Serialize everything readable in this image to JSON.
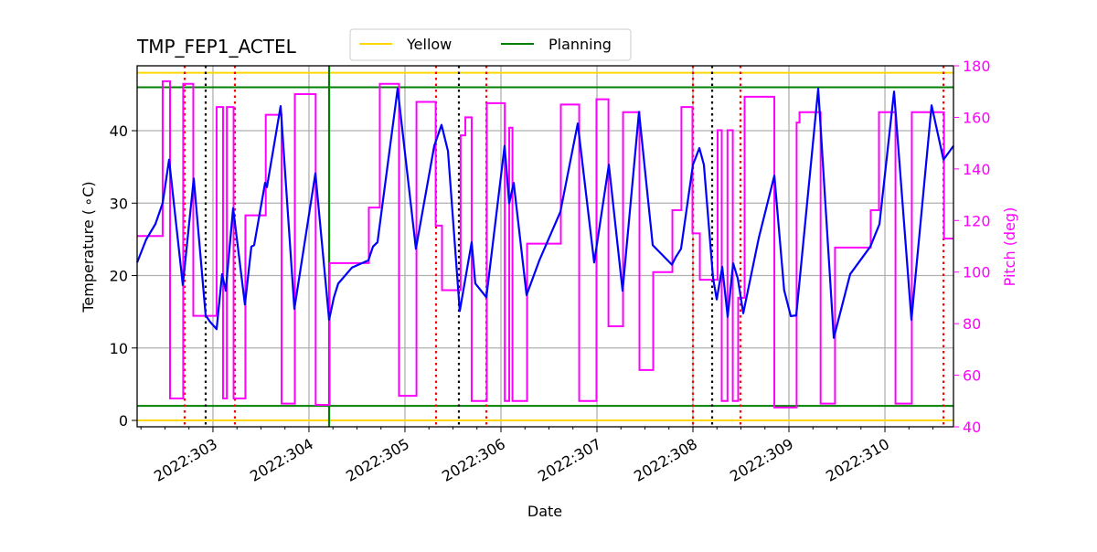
{
  "chart_data": {
    "type": "line",
    "title": "TMP_FEP1_ACTEL",
    "xlabel": "Date",
    "ylabel": "Temperature ($^\\circ$C)",
    "ylabel_display": "Temperature ( ∘C)",
    "y2label": "Pitch (deg)",
    "xlim": [
      302.21,
      310.714
    ],
    "ylim": [
      -0.88,
      48.96
    ],
    "y2lim": [
      40,
      180
    ],
    "grid": true,
    "legend_placement": "top-center",
    "xticks": [
      {
        "value": 303,
        "label": "2022:303"
      },
      {
        "value": 304,
        "label": "2022:304"
      },
      {
        "value": 305,
        "label": "2022:305"
      },
      {
        "value": 306,
        "label": "2022:306"
      },
      {
        "value": 307,
        "label": "2022:307"
      },
      {
        "value": 308,
        "label": "2022:308"
      },
      {
        "value": 309,
        "label": "2022:309"
      },
      {
        "value": 310,
        "label": "2022:310"
      }
    ],
    "yticks": [
      0,
      10,
      20,
      30,
      40
    ],
    "y2ticks": [
      40,
      60,
      80,
      100,
      120,
      140,
      160,
      180
    ],
    "colors": {
      "temperature": "#0000ff",
      "pitch": "#ff00ff",
      "yellow": "#ffd700",
      "planning": "#008000",
      "red_marker": "#ff0000",
      "black_marker": "#000000",
      "grid": "#b0b0b0",
      "y2axis": "#ff00ff"
    },
    "legend": [
      {
        "label": "Yellow",
        "color": "#ffd700"
      },
      {
        "label": "Planning",
        "color": "#008000"
      }
    ],
    "hlines": [
      {
        "series": "Yellow",
        "value": 48,
        "color": "#ffd700"
      },
      {
        "series": "Yellow",
        "value": 0,
        "color": "#ffd700"
      },
      {
        "series": "Planning",
        "value": 46,
        "color": "#008000"
      },
      {
        "series": "Planning",
        "value": 2,
        "color": "#008000"
      }
    ],
    "vlines": [
      {
        "x": 302.705,
        "color": "#ff0000",
        "style": "dotted"
      },
      {
        "x": 303.229,
        "color": "#ff0000",
        "style": "dotted"
      },
      {
        "x": 305.324,
        "color": "#ff0000",
        "style": "dotted"
      },
      {
        "x": 305.848,
        "color": "#ff0000",
        "style": "dotted"
      },
      {
        "x": 308.0,
        "color": "#ff0000",
        "style": "dotted"
      },
      {
        "x": 308.495,
        "color": "#ff0000",
        "style": "dotted"
      },
      {
        "x": 310.61,
        "color": "#ff0000",
        "style": "dotted"
      },
      {
        "x": 302.924,
        "color": "#000000",
        "style": "dotted"
      },
      {
        "x": 305.562,
        "color": "#000000",
        "style": "dotted"
      },
      {
        "x": 308.2,
        "color": "#000000",
        "style": "dotted"
      },
      {
        "x": 304.21,
        "color": "#008000",
        "style": "solid"
      }
    ],
    "temperature": [
      [
        302.21,
        21.8
      ],
      [
        302.305,
        25.0
      ],
      [
        302.4,
        27.1
      ],
      [
        302.476,
        30.0
      ],
      [
        302.543,
        36.0
      ],
      [
        302.686,
        18.7
      ],
      [
        302.8,
        33.4
      ],
      [
        302.924,
        14.5
      ],
      [
        302.971,
        13.6
      ],
      [
        303.038,
        12.6
      ],
      [
        303.095,
        20.2
      ],
      [
        303.133,
        17.9
      ],
      [
        303.21,
        29.3
      ],
      [
        303.333,
        16.0
      ],
      [
        303.4,
        24.0
      ],
      [
        303.429,
        24.2
      ],
      [
        303.543,
        32.8
      ],
      [
        303.562,
        32.2
      ],
      [
        303.705,
        43.4
      ],
      [
        303.848,
        15.4
      ],
      [
        304.067,
        34.1
      ],
      [
        304.21,
        13.9
      ],
      [
        304.26,
        17.0
      ],
      [
        304.305,
        18.9
      ],
      [
        304.448,
        21.1
      ],
      [
        304.619,
        22.1
      ],
      [
        304.667,
        24.0
      ],
      [
        304.714,
        24.6
      ],
      [
        304.924,
        45.8
      ],
      [
        305.114,
        23.7
      ],
      [
        305.305,
        37.9
      ],
      [
        305.381,
        40.8
      ],
      [
        305.448,
        37.2
      ],
      [
        305.571,
        15.1
      ],
      [
        305.695,
        24.6
      ],
      [
        305.733,
        18.9
      ],
      [
        305.848,
        17.0
      ],
      [
        306.038,
        37.9
      ],
      [
        306.086,
        30.0
      ],
      [
        306.133,
        32.8
      ],
      [
        306.267,
        17.3
      ],
      [
        306.4,
        22.1
      ],
      [
        306.619,
        28.8
      ],
      [
        306.8,
        41.0
      ],
      [
        306.971,
        21.8
      ],
      [
        307.124,
        35.3
      ],
      [
        307.267,
        17.9
      ],
      [
        307.438,
        42.6
      ],
      [
        307.581,
        24.2
      ],
      [
        307.781,
        21.5
      ],
      [
        307.819,
        22.5
      ],
      [
        307.876,
        23.7
      ],
      [
        308.0,
        35.3
      ],
      [
        308.067,
        37.6
      ],
      [
        308.114,
        35.3
      ],
      [
        308.21,
        19.6
      ],
      [
        308.248,
        16.7
      ],
      [
        308.305,
        21.2
      ],
      [
        308.362,
        14.3
      ],
      [
        308.419,
        21.7
      ],
      [
        308.467,
        19.6
      ],
      [
        308.524,
        14.8
      ],
      [
        308.686,
        25.2
      ],
      [
        308.848,
        33.8
      ],
      [
        308.95,
        18.0
      ],
      [
        309.019,
        14.4
      ],
      [
        309.076,
        14.5
      ],
      [
        309.305,
        45.8
      ],
      [
        309.467,
        11.4
      ],
      [
        309.638,
        20.2
      ],
      [
        309.848,
        24.0
      ],
      [
        309.943,
        27.1
      ],
      [
        310.095,
        45.4
      ],
      [
        310.276,
        13.9
      ],
      [
        310.486,
        43.5
      ],
      [
        310.61,
        36.0
      ],
      [
        310.714,
        37.9
      ]
    ],
    "pitch_steps": [
      [
        302.21,
        114
      ],
      [
        302.476,
        174
      ],
      [
        302.553,
        51
      ],
      [
        302.69,
        173
      ],
      [
        302.795,
        83
      ],
      [
        303.038,
        164
      ],
      [
        303.105,
        51
      ],
      [
        303.145,
        164
      ],
      [
        303.215,
        51
      ],
      [
        303.338,
        122
      ],
      [
        303.55,
        161
      ],
      [
        303.715,
        49
      ],
      [
        303.853,
        169
      ],
      [
        304.07,
        48.5
      ],
      [
        304.215,
        103.5
      ],
      [
        304.624,
        125
      ],
      [
        304.738,
        173
      ],
      [
        304.938,
        52
      ],
      [
        305.12,
        166
      ],
      [
        305.32,
        118
      ],
      [
        305.386,
        93
      ],
      [
        305.58,
        153
      ],
      [
        305.629,
        160
      ],
      [
        305.695,
        50
      ],
      [
        305.852,
        165.5
      ],
      [
        306.04,
        50
      ],
      [
        306.086,
        156
      ],
      [
        306.12,
        50
      ],
      [
        306.272,
        111
      ],
      [
        306.624,
        165
      ],
      [
        306.815,
        50
      ],
      [
        306.995,
        167
      ],
      [
        307.12,
        79
      ],
      [
        307.272,
        162
      ],
      [
        307.443,
        62
      ],
      [
        307.586,
        100
      ],
      [
        307.786,
        124
      ],
      [
        307.88,
        164
      ],
      [
        307.995,
        115
      ],
      [
        308.072,
        97
      ],
      [
        308.257,
        155
      ],
      [
        308.3,
        50
      ],
      [
        308.36,
        155
      ],
      [
        308.415,
        50
      ],
      [
        308.471,
        90
      ],
      [
        308.538,
        168
      ],
      [
        308.848,
        47.5
      ],
      [
        309.08,
        158
      ],
      [
        309.11,
        162
      ],
      [
        309.33,
        49
      ],
      [
        309.48,
        109.5
      ],
      [
        309.852,
        124
      ],
      [
        309.938,
        162
      ],
      [
        310.11,
        49
      ],
      [
        310.28,
        162
      ],
      [
        310.615,
        113
      ]
    ]
  }
}
